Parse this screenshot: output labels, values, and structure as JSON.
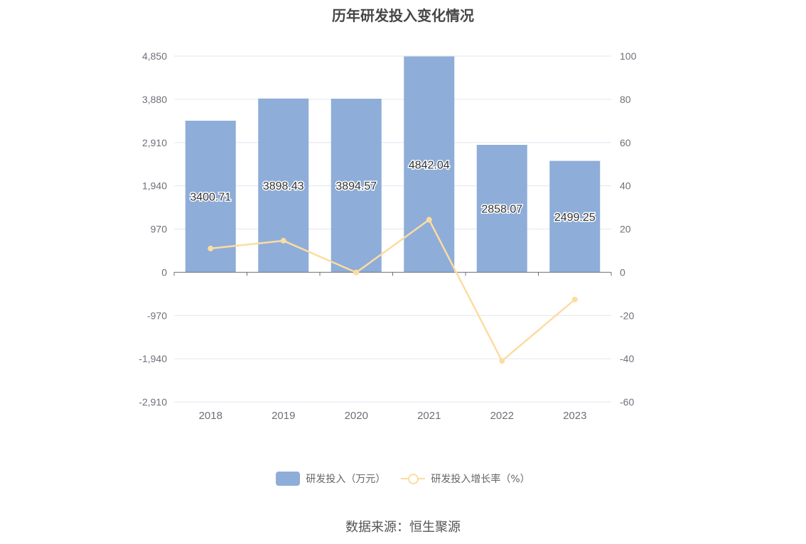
{
  "chart_data": {
    "type": "bar",
    "title": "历年研发投入变化情况",
    "categories": [
      "2018",
      "2019",
      "2020",
      "2021",
      "2022",
      "2023"
    ],
    "series": [
      {
        "name": "研发投入（万元）",
        "type": "bar",
        "axis": "left",
        "values": [
          3400.71,
          3898.43,
          3894.57,
          4842.04,
          2858.07,
          2499.25
        ],
        "labels": [
          "3400.71",
          "3898.43",
          "3894.57",
          "4842.04",
          "2858.07",
          "2499.25"
        ],
        "color": "#8eadd9"
      },
      {
        "name": "研发投入增长率（%）",
        "type": "line",
        "axis": "right",
        "values": [
          11.0,
          14.6,
          -0.1,
          24.3,
          -41.0,
          -12.6
        ],
        "color": "#fcdca2"
      }
    ],
    "left_axis": {
      "ylim": [
        -2910,
        4850
      ],
      "ticks": [
        4850,
        3880,
        2910,
        1940,
        970,
        0,
        -970,
        -1940,
        -2910
      ],
      "tick_labels": [
        "4,850",
        "3,880",
        "2,910",
        "1,940",
        "970",
        "0",
        "-970",
        "-1,940",
        "-2,910"
      ]
    },
    "right_axis": {
      "ylim": [
        -60,
        100
      ],
      "ticks": [
        100,
        80,
        60,
        40,
        20,
        0,
        -20,
        -40,
        -60
      ],
      "tick_labels": [
        "100",
        "80",
        "60",
        "40",
        "20",
        "0",
        "-20",
        "-40",
        "-60"
      ]
    },
    "grid": true,
    "legend_position": "bottom"
  },
  "legend": {
    "bar_label": "研发投入（万元）",
    "line_label": "研发投入增长率（%）"
  },
  "source_text": "数据来源：恒生聚源"
}
